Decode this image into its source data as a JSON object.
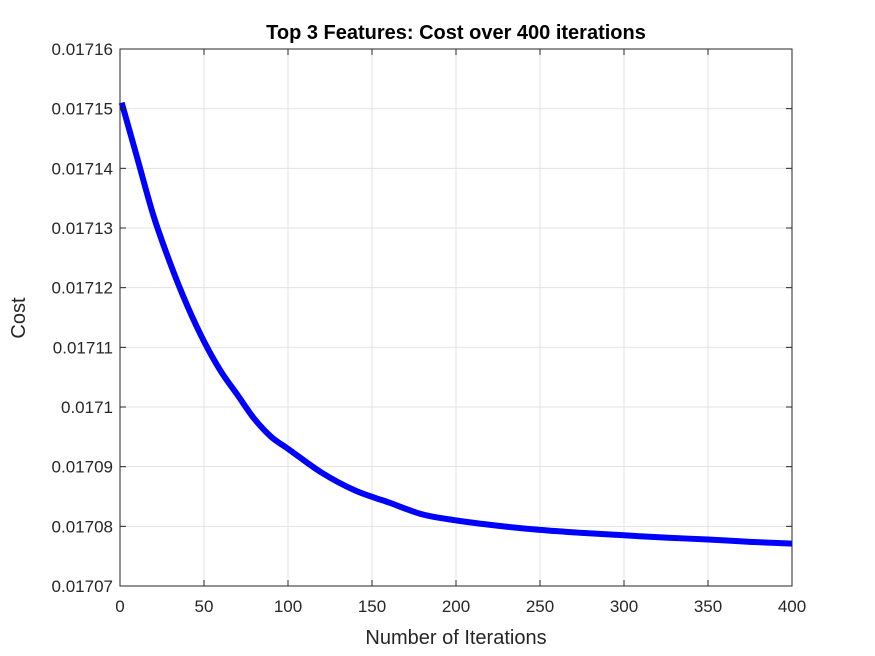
{
  "chart_data": {
    "type": "line",
    "title": "Top 3 Features: Cost over 400 iterations",
    "xlabel": "Number of Iterations",
    "ylabel": "Cost",
    "xlim": [
      0,
      400
    ],
    "ylim": [
      0.01707,
      0.01716
    ],
    "xticks": [
      0,
      50,
      100,
      150,
      200,
      250,
      300,
      350,
      400
    ],
    "yticks": [
      0.01707,
      0.01708,
      0.01709,
      0.0171,
      0.01711,
      0.01712,
      0.01713,
      0.01714,
      0.01715,
      0.01716
    ],
    "xtick_labels": [
      "0",
      "50",
      "100",
      "150",
      "200",
      "250",
      "300",
      "350",
      "400"
    ],
    "ytick_labels": [
      "0.01707",
      "0.01708",
      "0.01709",
      "0.0171",
      "0.01711",
      "0.01712",
      "0.01713",
      "0.01714",
      "0.01715",
      "0.01716"
    ],
    "grid": true,
    "box": true,
    "series": [
      {
        "color": "#0000ff",
        "x": [
          1,
          10,
          20,
          30,
          40,
          50,
          60,
          70,
          80,
          90,
          100,
          120,
          140,
          160,
          180,
          200,
          225,
          250,
          275,
          300,
          325,
          350,
          375,
          400
        ],
        "y": [
          0.017151,
          0.017142,
          0.017132,
          0.017124,
          0.017117,
          0.017111,
          0.017106,
          0.017102,
          0.017098,
          0.017095,
          0.017093,
          0.017089,
          0.017086,
          0.017084,
          0.017082,
          0.017081,
          0.0170801,
          0.0170794,
          0.0170789,
          0.0170785,
          0.0170781,
          0.0170778,
          0.0170774,
          0.0170771
        ]
      }
    ]
  }
}
